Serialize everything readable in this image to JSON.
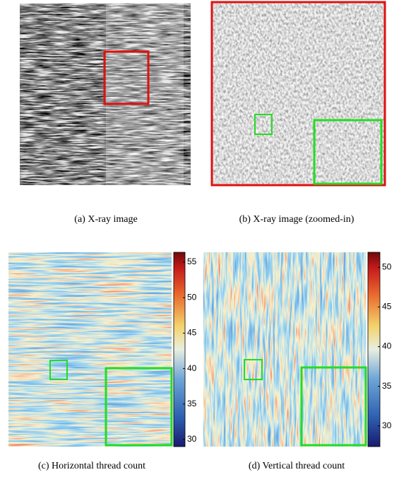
{
  "panels": [
    {
      "caption": "(a) X-ray image"
    },
    {
      "caption": "(b) X-ray image (zoomed-in)"
    },
    {
      "caption": "(c) Horizontal thread count",
      "colorbar": {
        "lim": [
          29,
          56.4
        ],
        "ticks": [
          30,
          35,
          40,
          45,
          50,
          55
        ]
      }
    },
    {
      "caption": "(d) Vertical thread count",
      "colorbar": {
        "lim": [
          27.4,
          51.9
        ],
        "ticks": [
          30,
          35,
          40,
          45,
          50
        ]
      }
    }
  ]
}
